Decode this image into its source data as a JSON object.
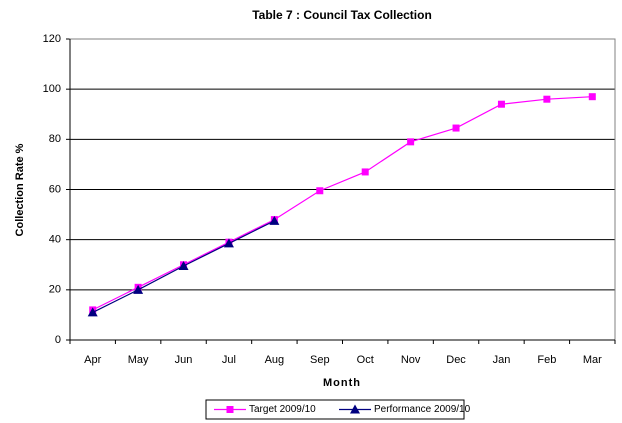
{
  "chart_data": {
    "type": "line",
    "title": "Table 7 : Council Tax Collection",
    "x_label": "Month",
    "y_label": "Collection Rate %",
    "categories": [
      "Apr",
      "May",
      "Jun",
      "Jul",
      "Aug",
      "Sep",
      "Oct",
      "Nov",
      "Dec",
      "Jan",
      "Feb",
      "Mar"
    ],
    "series": [
      {
        "name": "Target 2009/10",
        "color": "#ff00ff",
        "marker": "square",
        "values": [
          12,
          21,
          30,
          39,
          48,
          59.5,
          67,
          79,
          84.5,
          94,
          96,
          97
        ]
      },
      {
        "name": "Performance 2009/10",
        "color": "#000080",
        "marker": "triangle",
        "values": [
          11,
          20,
          29.5,
          38.5,
          47.5,
          null,
          null,
          null,
          null,
          null,
          null,
          null
        ]
      }
    ],
    "ylim": [
      0,
      120
    ],
    "yticks": [
      0,
      20,
      40,
      60,
      80,
      100,
      120
    ],
    "grid": true,
    "legend": "bottom"
  }
}
